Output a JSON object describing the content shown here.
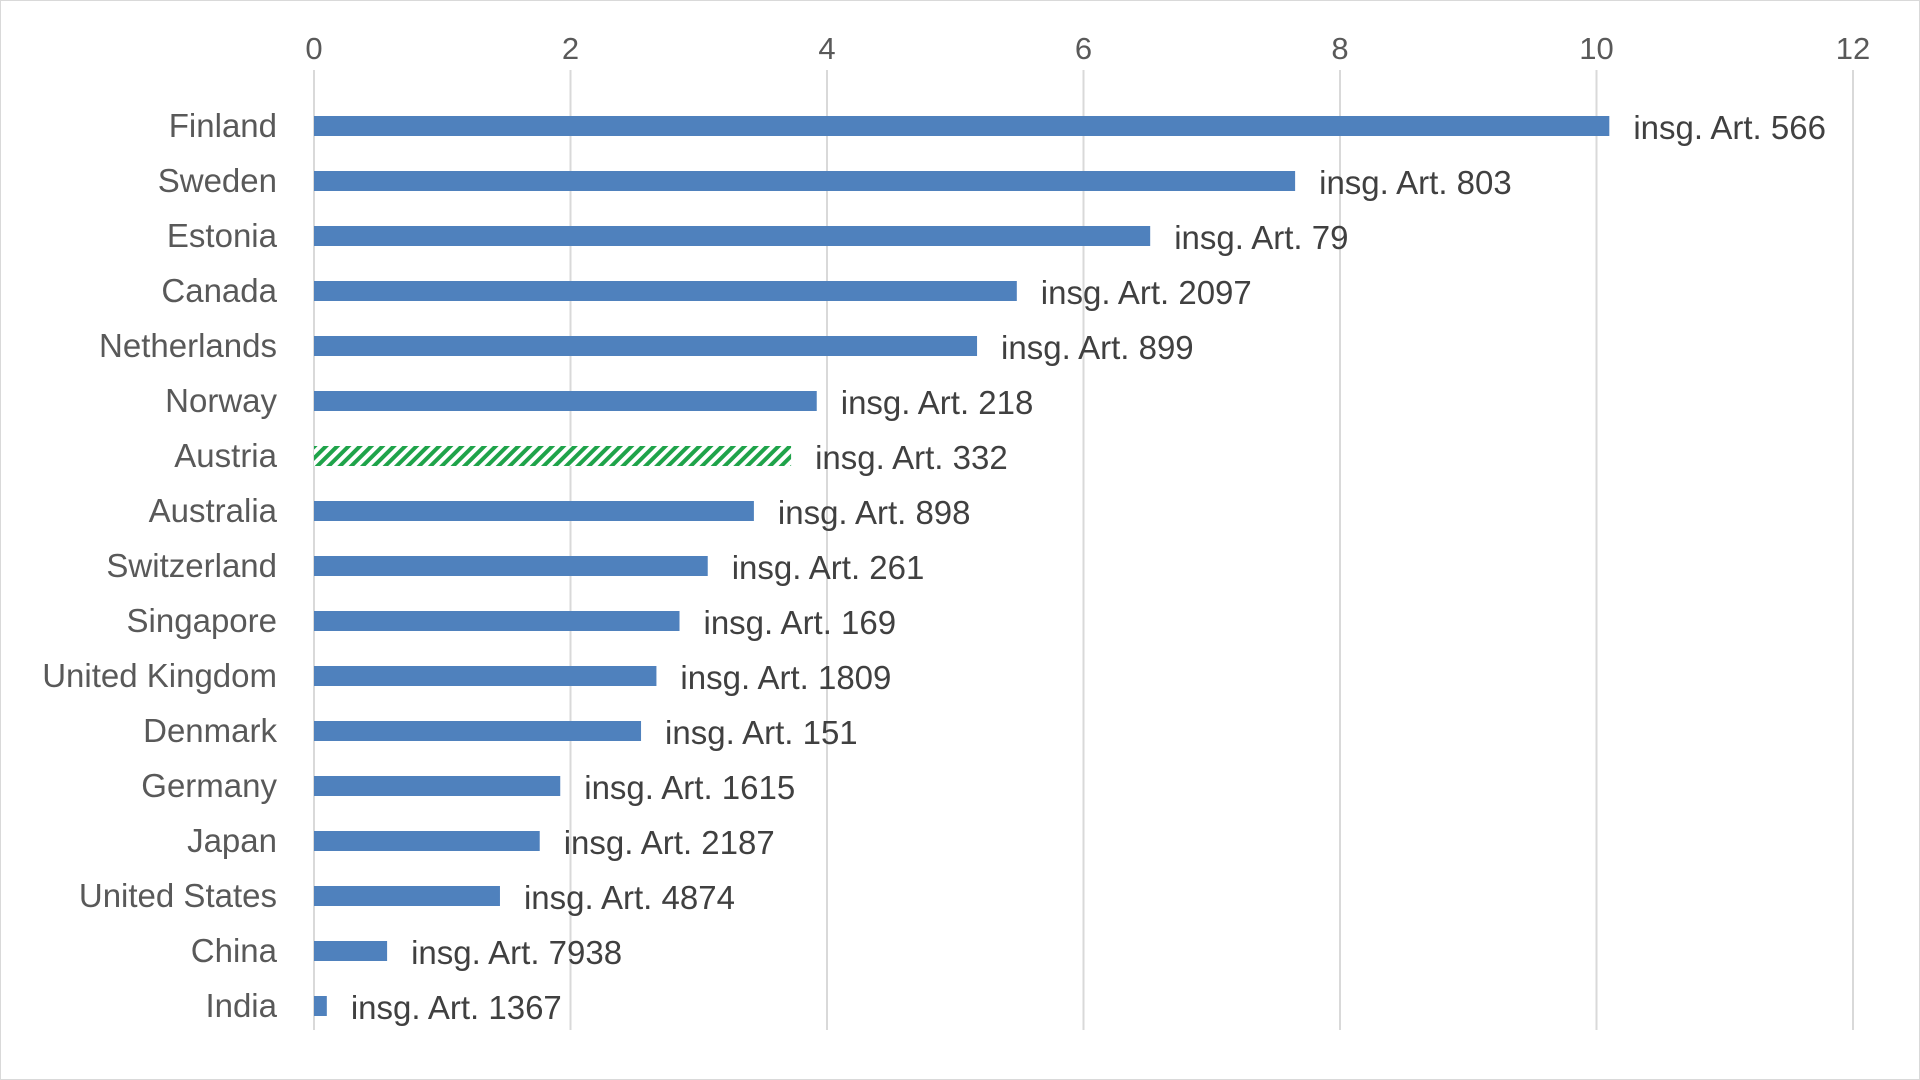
{
  "chart_data": {
    "type": "bar",
    "orientation": "horizontal",
    "categories": [
      "Finland",
      "Sweden",
      "Estonia",
      "Canada",
      "Netherlands",
      "Norway",
      "Austria",
      "Australia",
      "Switzerland",
      "Singapore",
      "United Kingdom",
      "Denmark",
      "Germany",
      "Japan",
      "United States",
      "China",
      "India"
    ],
    "values": [
      10.1,
      7.65,
      6.52,
      5.48,
      5.17,
      3.92,
      3.72,
      3.43,
      3.07,
      2.85,
      2.67,
      2.55,
      1.92,
      1.76,
      1.45,
      0.57,
      0.1
    ],
    "data_labels": [
      "insg. Art. 566",
      "insg. Art. 803",
      "insg. Art. 79",
      "insg. Art. 2097",
      "insg. Art. 899",
      "insg. Art. 218",
      "insg. Art. 332",
      "insg. Art. 898",
      "insg. Art. 261",
      "insg. Art. 169",
      "insg. Art. 1809",
      "insg. Art. 151",
      "insg. Art. 1615",
      "insg. Art. 2187",
      "insg. Art. 4874",
      "insg. Art. 7938",
      "insg. Art. 1367"
    ],
    "highlight": "Austria",
    "xlim": [
      0,
      12
    ],
    "xticks": [
      "0",
      "2",
      "4",
      "6",
      "8",
      "10",
      "12"
    ],
    "x_axis_position": "top",
    "grid": true,
    "title": "",
    "xlabel": "",
    "ylabel": ""
  },
  "colors": {
    "bar": "#4f81bd",
    "highlight": "#1fa34a",
    "grid": "#d9d9d9"
  }
}
